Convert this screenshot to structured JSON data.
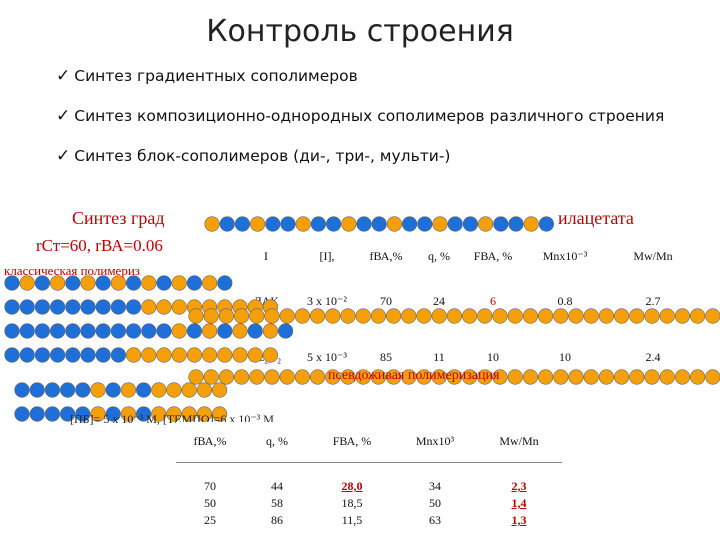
{
  "title": "Контроль строения",
  "check_glyph": "✓",
  "bullets": [
    "Синтез градиентных сополимеров",
    "Синтез композиционно-однородных сополимеров различного строения",
    "Синтез блок-сополимеров (ди-, три-, мульти-)"
  ],
  "heading_visible": "Синтез град",
  "heading_tail": "илацетата",
  "r_st": "rСт=60, rВА=0.06",
  "classic_label": "классическая полимериз",
  "pseudo_label": "псевдоживая полимеризация",
  "conditions": "[ПБ]= 5 х 10⁻³ М, [ТЕМПО]=6 х 10⁻³ М",
  "colors": {
    "red": "#c00000",
    "blue": "#1e6fd8",
    "orange": "#f5a00a"
  },
  "table1": {
    "headers": [
      "I",
      "[I],",
      "fВА,%",
      "q, %",
      "FВА, %",
      "Mnx10⁻³",
      "Mw/Mn"
    ],
    "rows": [
      {
        "initiator": "ДАК",
        "conc": "3 х 10⁻²",
        "f": "70",
        "q": "24",
        "F": "6",
        "mn": "0.8",
        "mw": "2.7"
      },
      {
        "initiator": "Bz₂O₂",
        "conc": "5 х 10⁻³",
        "f": "85",
        "q": "11",
        "F": "10",
        "mn": "10",
        "mw": "2.4"
      }
    ]
  },
  "table2": {
    "headers": [
      "fВА,%",
      "q, %",
      "FВА, %",
      "Mnx10³",
      "Mw/Mn"
    ],
    "rows": [
      [
        "70",
        "44",
        "28,0",
        "34",
        "2,3"
      ],
      [
        "50",
        "58",
        "18,5",
        "50",
        "1,4"
      ],
      [
        "25",
        "86",
        "11,5",
        "63",
        "1,3"
      ]
    ]
  }
}
